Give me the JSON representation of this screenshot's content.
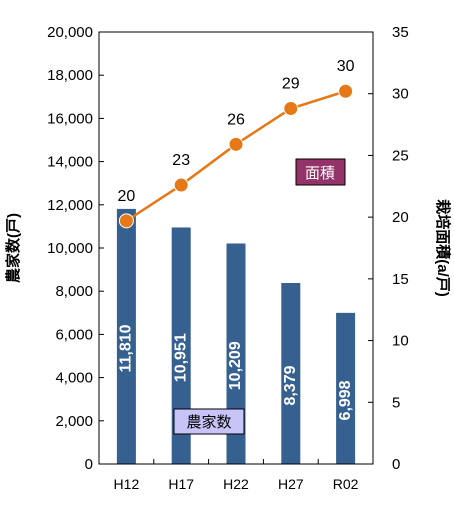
{
  "chart_data": {
    "type": "bar+line",
    "categories": [
      "H12",
      "H17",
      "H22",
      "H27",
      "R02"
    ],
    "series": [
      {
        "name": "農家数",
        "kind": "bar",
        "axis": "left",
        "values": [
          11810,
          10951,
          10209,
          8379,
          6998
        ],
        "value_labels": [
          "11,810",
          "10,951",
          "10,209",
          "8,379",
          "6,998"
        ]
      },
      {
        "name": "面積",
        "kind": "line",
        "axis": "right",
        "values": [
          20,
          23,
          26,
          29,
          30
        ],
        "plot_values": [
          19.7,
          22.6,
          25.9,
          28.8,
          30.2
        ],
        "value_labels": [
          "20",
          "23",
          "26",
          "29",
          "30"
        ]
      }
    ],
    "ylabel_left": "農家数(戸)",
    "ylabel_right": "栽培面積(a/戸)",
    "ylim_left": [
      0,
      20000
    ],
    "ylim_right": [
      0,
      35
    ],
    "yticks_left": [
      "0",
      "2,000",
      "4,000",
      "6,000",
      "8,000",
      "10,000",
      "12,000",
      "14,000",
      "16,000",
      "18,000",
      "20,000"
    ],
    "yticks_right": [
      "0",
      "5",
      "10",
      "15",
      "20",
      "25",
      "30",
      "35"
    ],
    "legend_bar": "農家数",
    "legend_line": "面積",
    "grid": false,
    "colors": {
      "bar": "#35608f",
      "line": "#e77817",
      "marker": "#e77817",
      "legend_bar_bg": "#c8c4f8",
      "legend_line_bg": "#94336a",
      "bar_label": "#ffffff"
    }
  }
}
